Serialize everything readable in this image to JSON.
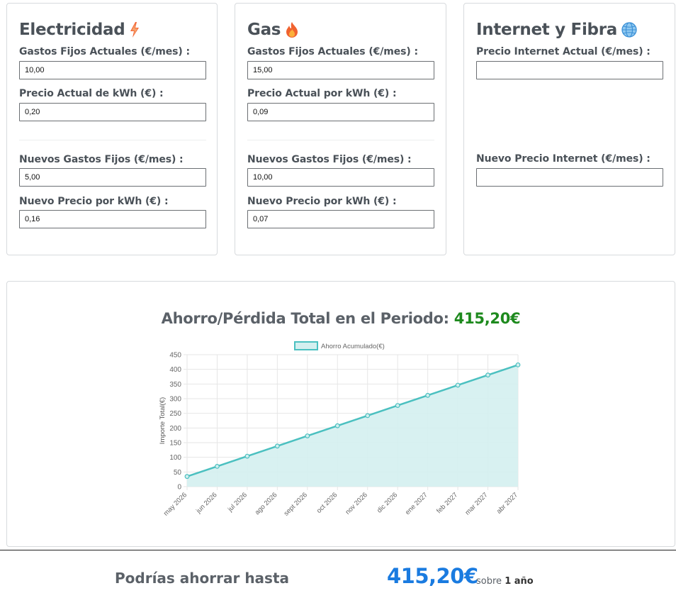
{
  "electricity": {
    "title": "Electricidad",
    "icon": "lightning-icon",
    "current_fixed_label": "Gastos Fijos Actuales (€/mes) :",
    "current_fixed_value": "10,00",
    "current_kwh_label": "Precio Actual de kWh (€) :",
    "current_kwh_value": "0,20",
    "new_fixed_label": "Nuevos Gastos Fijos (€/mes) :",
    "new_fixed_value": "5,00",
    "new_kwh_label": "Nuevo Precio por kWh (€) :",
    "new_kwh_value": "0,16"
  },
  "gas": {
    "title": "Gas",
    "icon": "fire-icon",
    "current_fixed_label": "Gastos Fijos Actuales (€/mes) :",
    "current_fixed_value": "15,00",
    "current_kwh_label": "Precio Actual por kWh (€) :",
    "current_kwh_value": "0,09",
    "new_fixed_label": "Nuevos Gastos Fijos (€/mes) :",
    "new_fixed_value": "10,00",
    "new_kwh_label": "Nuevo Precio por kWh (€) :",
    "new_kwh_value": "0,07"
  },
  "internet": {
    "title": "Internet y Fibra",
    "icon": "globe-icon",
    "current_price_label": "Precio Internet Actual (€/mes) :",
    "current_price_value": "",
    "new_price_label": "Nuevo Precio Internet (€/mes) :",
    "new_price_value": ""
  },
  "chart_section": {
    "title_prefix": "Ahorro/Pérdida Total en el Periodo:",
    "title_value": "415,20€"
  },
  "chart_data": {
    "type": "area",
    "categories": [
      "may 2026",
      "jun 2026",
      "jul 2026",
      "ago 2026",
      "sept 2026",
      "oct 2026",
      "nov 2026",
      "dic 2026",
      "ene 2027",
      "feb 2027",
      "mar 2027",
      "abr 2027"
    ],
    "series": [
      {
        "name": "Ahorro Acumulado(€)",
        "values": [
          34.6,
          69.2,
          103.8,
          138.4,
          173.0,
          207.6,
          242.2,
          276.8,
          311.4,
          346.0,
          380.6,
          415.2
        ]
      }
    ],
    "ylabel": "Importe Total(€)",
    "xlabel": "",
    "ylim": [
      0,
      450
    ],
    "yticks": [
      0,
      50,
      100,
      150,
      200,
      250,
      300,
      350,
      400,
      450
    ],
    "grid": true,
    "legend": "top-center",
    "line_color": "#4bc0c0",
    "fill_color": "#d4efef"
  },
  "footer": {
    "label": "Podrías ahorrar hasta",
    "amount": "415,20€",
    "sub_prefix": "sobre",
    "sub_period": "1 año"
  }
}
